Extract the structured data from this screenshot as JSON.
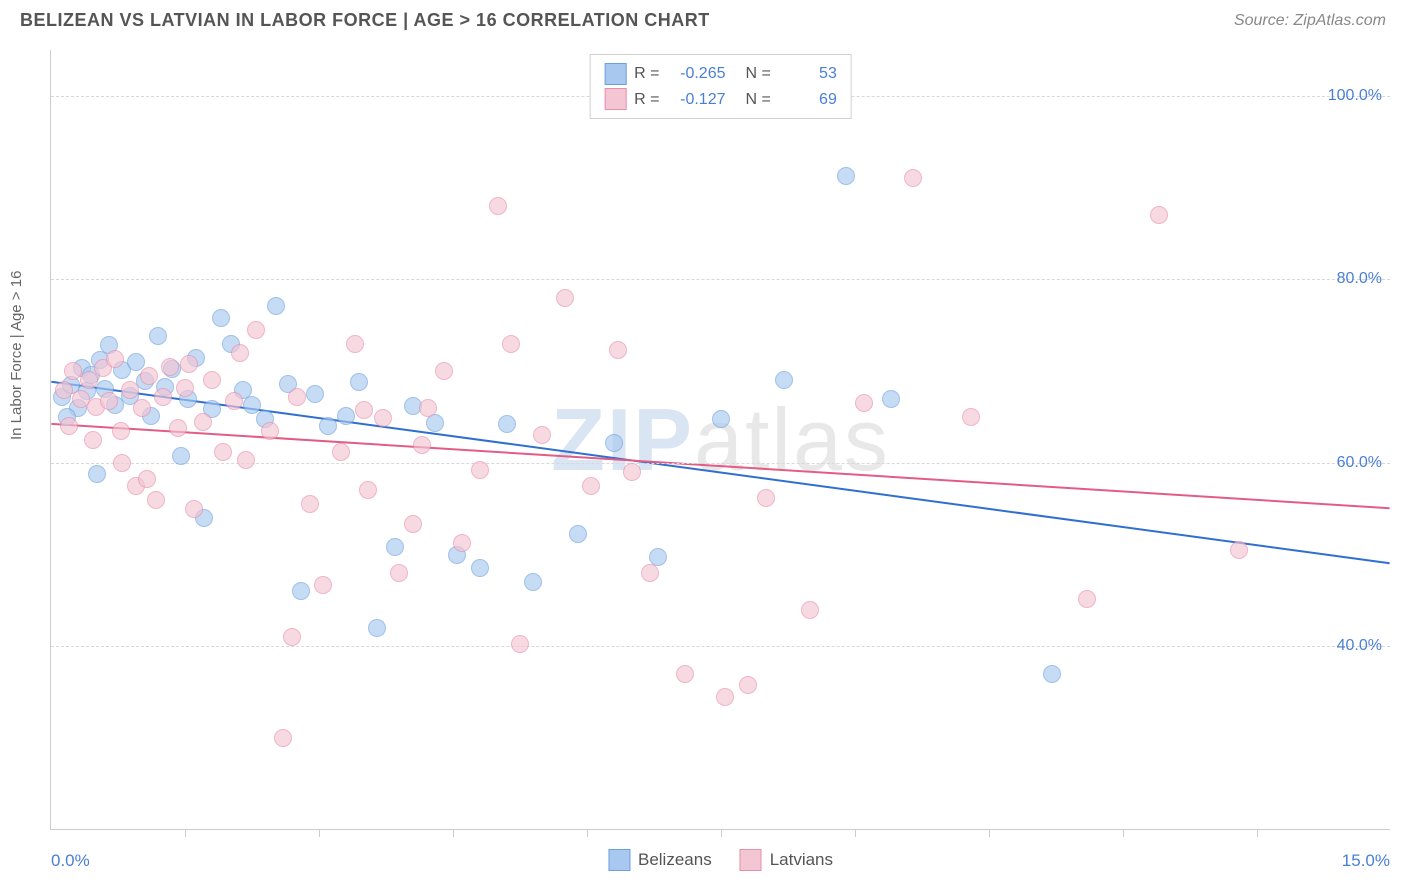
{
  "header": {
    "title": "BELIZEAN VS LATVIAN IN LABOR FORCE | AGE > 16 CORRELATION CHART",
    "source": "Source: ZipAtlas.com"
  },
  "watermark": {
    "part1": "ZIP",
    "part2": "atlas"
  },
  "chart": {
    "type": "scatter",
    "ylabel": "In Labor Force | Age > 16",
    "background_color": "#ffffff",
    "grid_color": "#d8d8d8",
    "axis_color": "#cccccc",
    "tick_label_color": "#4a7fd6",
    "ylabel_color": "#666666",
    "xlim": [
      0,
      15
    ],
    "ylim": [
      20,
      105
    ],
    "yticks": [
      40,
      60,
      80,
      100
    ],
    "ytick_labels": [
      "40.0%",
      "60.0%",
      "80.0%",
      "100.0%"
    ],
    "xticks": [
      1.5,
      3.0,
      4.5,
      6.0,
      7.5,
      9.0,
      10.5,
      12.0,
      13.5
    ],
    "x_axis_left_label": "0.0%",
    "x_axis_right_label": "15.0%",
    "marker_radius": 9,
    "marker_opacity": 0.65,
    "series": [
      {
        "name": "Belizeans",
        "label": "Belizeans",
        "fill_color": "#a9c8ef",
        "stroke_color": "#6ea0de",
        "R": "-0.265",
        "N": "53",
        "trend": {
          "x1": 0,
          "y1": 68.8,
          "x2": 15,
          "y2": 49.0,
          "color": "#2f6fd0",
          "width": 2
        },
        "points": [
          [
            0.12,
            67.2
          ],
          [
            0.22,
            68.5
          ],
          [
            0.3,
            66.0
          ],
          [
            0.35,
            70.3
          ],
          [
            0.4,
            67.8
          ],
          [
            0.45,
            69.6
          ],
          [
            0.55,
            71.2
          ],
          [
            0.6,
            68.1
          ],
          [
            0.65,
            72.9
          ],
          [
            0.72,
            66.3
          ],
          [
            0.8,
            70.1
          ],
          [
            0.88,
            67.3
          ],
          [
            0.95,
            71.0
          ],
          [
            1.05,
            68.9
          ],
          [
            1.12,
            65.1
          ],
          [
            1.2,
            73.8
          ],
          [
            1.28,
            68.3
          ],
          [
            1.35,
            70.2
          ],
          [
            1.45,
            60.8
          ],
          [
            1.53,
            67.0
          ],
          [
            1.62,
            71.4
          ],
          [
            1.71,
            54.0
          ],
          [
            1.8,
            65.9
          ],
          [
            1.9,
            75.8
          ],
          [
            2.02,
            73.0
          ],
          [
            2.15,
            68.0
          ],
          [
            2.25,
            66.3
          ],
          [
            2.4,
            64.8
          ],
          [
            2.52,
            77.1
          ],
          [
            2.65,
            68.6
          ],
          [
            2.8,
            46.0
          ],
          [
            2.95,
            67.5
          ],
          [
            3.1,
            64.0
          ],
          [
            3.3,
            65.1
          ],
          [
            3.45,
            68.8
          ],
          [
            3.65,
            42.0
          ],
          [
            3.85,
            50.8
          ],
          [
            4.05,
            66.2
          ],
          [
            4.3,
            64.4
          ],
          [
            4.55,
            50.0
          ],
          [
            4.8,
            48.5
          ],
          [
            5.1,
            64.2
          ],
          [
            5.4,
            47.0
          ],
          [
            5.9,
            52.3
          ],
          [
            6.3,
            62.2
          ],
          [
            6.8,
            49.8
          ],
          [
            7.5,
            64.8
          ],
          [
            8.2,
            69.0
          ],
          [
            8.9,
            91.3
          ],
          [
            9.4,
            67.0
          ],
          [
            11.2,
            37.0
          ],
          [
            0.18,
            65.0
          ],
          [
            0.52,
            58.8
          ]
        ]
      },
      {
        "name": "Latvians",
        "label": "Latvians",
        "fill_color": "#f4c5d3",
        "stroke_color": "#e88fab",
        "R": "-0.127",
        "N": "69",
        "trend": {
          "x1": 0,
          "y1": 64.2,
          "x2": 15,
          "y2": 55.0,
          "color": "#e25d86",
          "width": 2
        },
        "points": [
          [
            0.15,
            68.0
          ],
          [
            0.25,
            70.0
          ],
          [
            0.34,
            67.0
          ],
          [
            0.42,
            69.0
          ],
          [
            0.5,
            66.1
          ],
          [
            0.58,
            70.4
          ],
          [
            0.65,
            66.8
          ],
          [
            0.72,
            71.3
          ],
          [
            0.8,
            60.0
          ],
          [
            0.88,
            68.0
          ],
          [
            0.95,
            57.5
          ],
          [
            1.02,
            66.0
          ],
          [
            1.1,
            69.5
          ],
          [
            1.18,
            56.0
          ],
          [
            1.25,
            67.2
          ],
          [
            1.33,
            70.5
          ],
          [
            1.42,
            63.8
          ],
          [
            1.5,
            68.2
          ],
          [
            1.6,
            55.0
          ],
          [
            1.7,
            64.5
          ],
          [
            1.8,
            69.0
          ],
          [
            1.92,
            61.2
          ],
          [
            2.05,
            66.8
          ],
          [
            2.18,
            60.3
          ],
          [
            2.3,
            74.5
          ],
          [
            2.45,
            63.5
          ],
          [
            2.6,
            30.0
          ],
          [
            2.75,
            67.2
          ],
          [
            2.9,
            55.5
          ],
          [
            3.05,
            46.7
          ],
          [
            3.25,
            61.2
          ],
          [
            3.4,
            73.0
          ],
          [
            3.55,
            57.0
          ],
          [
            3.72,
            64.9
          ],
          [
            3.9,
            48.0
          ],
          [
            4.05,
            53.3
          ],
          [
            4.22,
            66.0
          ],
          [
            4.4,
            70.0
          ],
          [
            4.6,
            51.3
          ],
          [
            4.8,
            59.2
          ],
          [
            5.0,
            88.0
          ],
          [
            5.25,
            40.3
          ],
          [
            5.5,
            63.0
          ],
          [
            5.75,
            78.0
          ],
          [
            6.05,
            57.5
          ],
          [
            6.35,
            72.3
          ],
          [
            6.7,
            48.0
          ],
          [
            7.1,
            37.0
          ],
          [
            7.55,
            34.5
          ],
          [
            8.0,
            56.2
          ],
          [
            8.5,
            44.0
          ],
          [
            9.1,
            66.5
          ],
          [
            9.65,
            91.0
          ],
          [
            10.3,
            65.0
          ],
          [
            11.6,
            45.2
          ],
          [
            12.4,
            87.0
          ],
          [
            13.3,
            50.5
          ],
          [
            0.2,
            64.0
          ],
          [
            0.47,
            62.5
          ],
          [
            0.78,
            63.5
          ],
          [
            1.08,
            58.2
          ],
          [
            1.55,
            70.8
          ],
          [
            2.12,
            72.0
          ],
          [
            2.7,
            41.0
          ],
          [
            3.5,
            65.8
          ],
          [
            4.15,
            62.0
          ],
          [
            5.15,
            73.0
          ],
          [
            6.5,
            59.0
          ],
          [
            7.8,
            35.8
          ]
        ]
      }
    ],
    "legend_top": {
      "R_label": "R =",
      "N_label": "N ="
    }
  }
}
